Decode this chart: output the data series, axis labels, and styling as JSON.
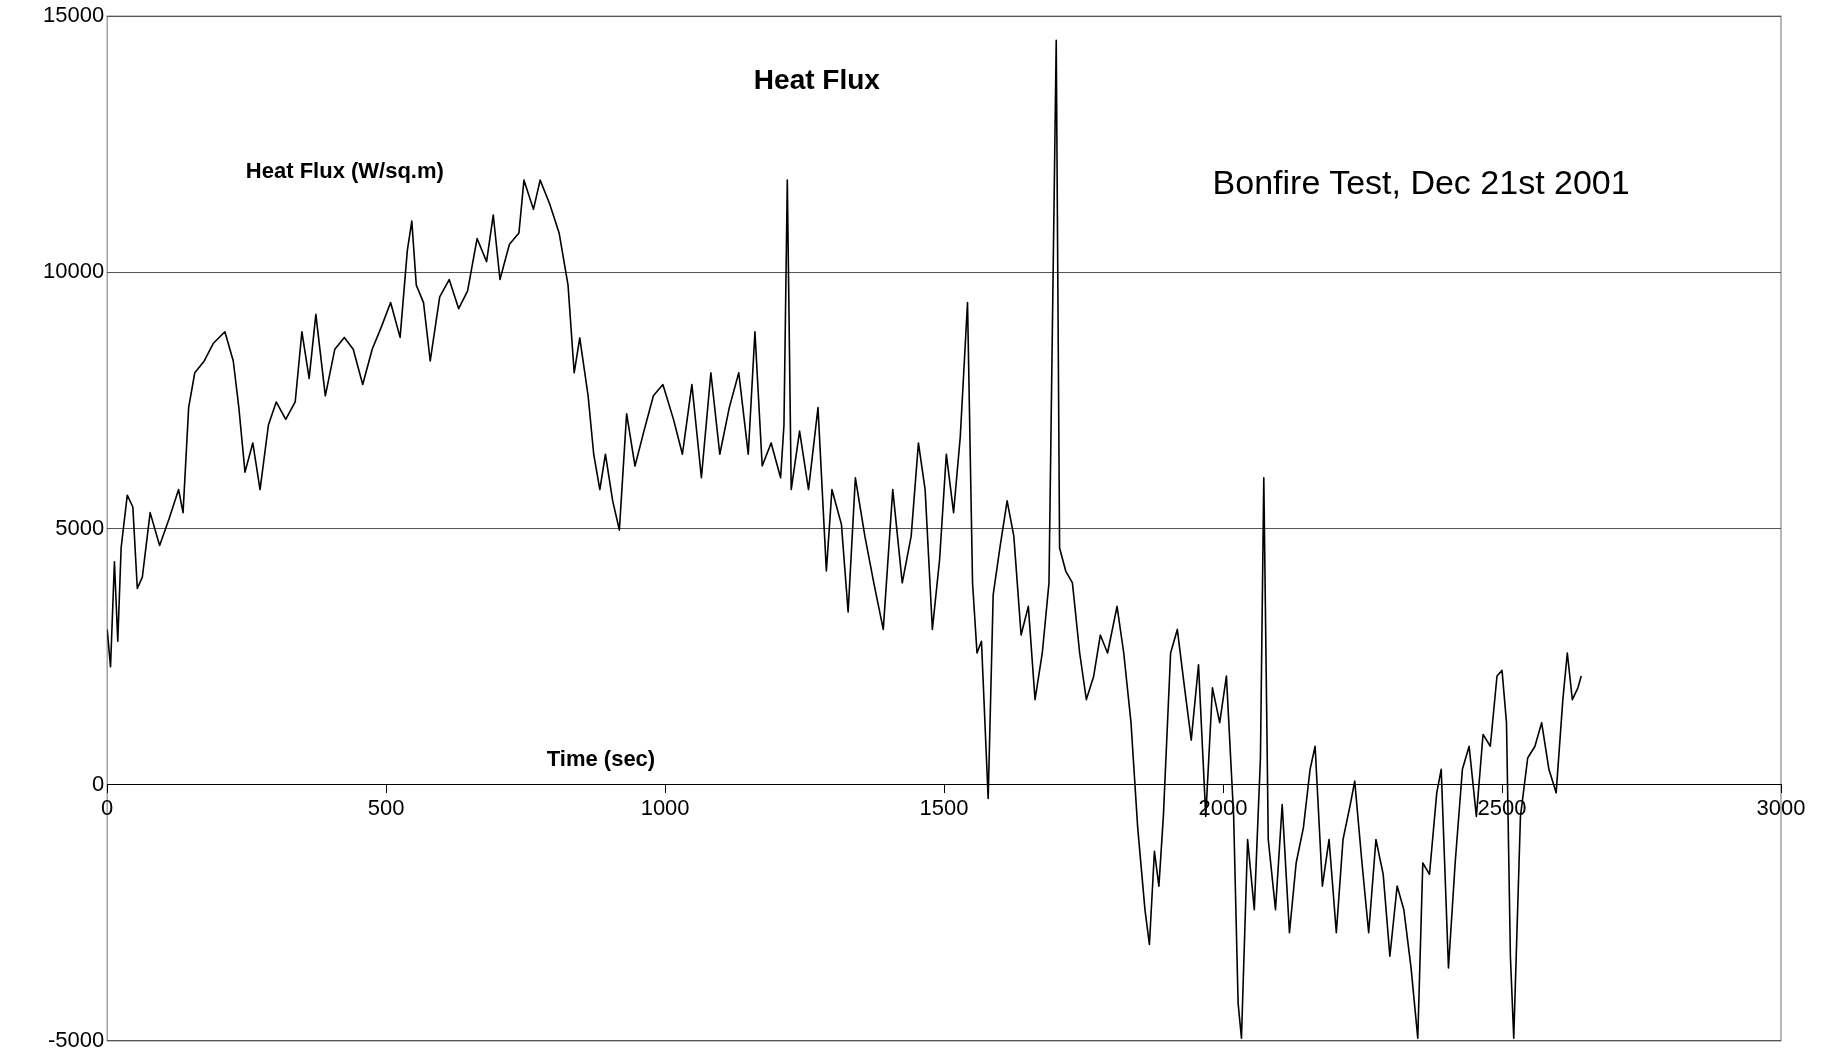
{
  "chart_data": {
    "type": "line",
    "title": "Heat Flux",
    "xlabel": "Time (sec)",
    "ylabel": "Heat Flux (W/sq.m)",
    "annotations": [
      "Bonfire Test, Dec 21st 2001"
    ],
    "xlim": [
      0,
      3000
    ],
    "xticks": [
      0,
      500,
      1000,
      1500,
      2000,
      2500,
      3000
    ],
    "ylim": [
      -5000,
      15000
    ],
    "yticks": [
      -5000,
      0,
      5000,
      10000,
      15000
    ],
    "grid": "y",
    "legend": false,
    "marker": "none",
    "line_style": "solid",
    "series": [
      {
        "color": "#000000",
        "x": [
          0,
          6,
          13,
          19,
          25,
          36,
          46,
          54,
          63,
          77,
          94,
          111,
          128,
          136,
          146,
          157,
          174,
          190,
          211,
          226,
          236,
          247,
          261,
          274,
          289,
          303,
          320,
          337,
          349,
          362,
          374,
          391,
          408,
          425,
          441,
          458,
          475,
          492,
          508,
          525,
          538,
          546,
          554,
          567,
          579,
          596,
          613,
          630,
          646,
          663,
          680,
          692,
          704,
          721,
          738,
          747,
          764,
          776,
          793,
          810,
          826,
          837,
          847,
          862,
          872,
          883,
          893,
          906,
          918,
          931,
          946,
          962,
          979,
          996,
          1015,
          1031,
          1048,
          1065,
          1082,
          1098,
          1115,
          1132,
          1149,
          1161,
          1174,
          1190,
          1207,
          1213,
          1219,
          1226,
          1241,
          1257,
          1274,
          1289,
          1299,
          1316,
          1328,
          1341,
          1358,
          1374,
          1391,
          1408,
          1425,
          1441,
          1454,
          1466,
          1479,
          1492,
          1504,
          1517,
          1529,
          1542,
          1551,
          1559,
          1567,
          1579,
          1588,
          1600,
          1613,
          1625,
          1638,
          1651,
          1663,
          1676,
          1688,
          1701,
          1707,
          1718,
          1730,
          1743,
          1755,
          1768,
          1780,
          1793,
          1810,
          1822,
          1835,
          1847,
          1860,
          1868,
          1877,
          1885,
          1893,
          1906,
          1918,
          1931,
          1943,
          1956,
          1969,
          1981,
          1994,
          2006,
          2019,
          2027,
          2033,
          2044,
          2056,
          2067,
          2073,
          2081,
          2094,
          2106,
          2119,
          2131,
          2144,
          2156,
          2165,
          2178,
          2190,
          2203,
          2215,
          2228,
          2236,
          2249,
          2261,
          2274,
          2287,
          2299,
          2312,
          2324,
          2337,
          2349,
          2358,
          2370,
          2383,
          2391,
          2404,
          2416,
          2429,
          2441,
          2454,
          2466,
          2479,
          2491,
          2500,
          2508,
          2515,
          2521,
          2533,
          2546,
          2559,
          2571,
          2584,
          2597,
          2609,
          2617,
          2626,
          2636,
          2642
        ],
        "values": [
          3030,
          2300,
          4350,
          2800,
          4620,
          5650,
          5420,
          3830,
          4050,
          5310,
          4670,
          5190,
          5760,
          5310,
          7360,
          8040,
          8270,
          8610,
          8840,
          8270,
          7360,
          6100,
          6670,
          5760,
          7020,
          7470,
          7130,
          7470,
          8840,
          7930,
          9180,
          7590,
          8500,
          8730,
          8500,
          7810,
          8500,
          8950,
          9410,
          8730,
          10430,
          11000,
          9750,
          9410,
          8270,
          9520,
          9860,
          9290,
          9640,
          10660,
          10210,
          11120,
          9860,
          10550,
          10770,
          11800,
          11230,
          11800,
          11340,
          10770,
          9750,
          8040,
          8720,
          7590,
          6450,
          5760,
          6450,
          5540,
          4970,
          7240,
          6220,
          6900,
          7590,
          7810,
          7130,
          6450,
          7810,
          5990,
          8040,
          6450,
          7360,
          8040,
          6450,
          8840,
          6220,
          6670,
          5990,
          7020,
          11800,
          5760,
          6900,
          5760,
          7360,
          4170,
          5760,
          5080,
          3370,
          5990,
          4850,
          3940,
          3030,
          5760,
          3940,
          4850,
          6670,
          5760,
          3030,
          4400,
          6450,
          5310,
          6790,
          9410,
          3940,
          2570,
          2800,
          -270,
          3710,
          4620,
          5540,
          4850,
          2920,
          3480,
          1660,
          2570,
          3940,
          14530,
          4620,
          4170,
          3940,
          2570,
          1660,
          2110,
          2920,
          2570,
          3480,
          2570,
          1210,
          -840,
          -2440,
          -3120,
          -1300,
          -1980,
          -620,
          2570,
          3030,
          1890,
          870,
          2340,
          -620,
          1890,
          1210,
          2120,
          -620,
          -4270,
          -4950,
          -1070,
          -2440,
          520,
          5990,
          -1070,
          -2440,
          -390,
          -2890,
          -1530,
          -840,
          300,
          750,
          -1980,
          -1070,
          -2890,
          -1070,
          -390,
          70,
          -1530,
          -2890,
          -1070,
          -1750,
          -3350,
          -1980,
          -2440,
          -3580,
          -4950,
          -1530,
          -1750,
          -160,
          300,
          -3580,
          -1530,
          300,
          750,
          -620,
          980,
          750,
          2120,
          2230,
          1210,
          -3350,
          -4950,
          -620,
          520,
          750,
          1210,
          300,
          -160,
          1660,
          2570,
          1660,
          1890,
          2120
        ]
      }
    ]
  }
}
